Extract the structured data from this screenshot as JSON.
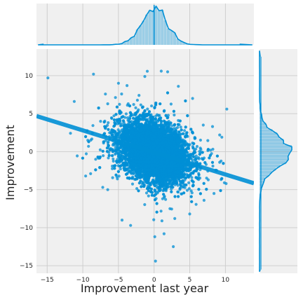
{
  "colors": {
    "accent": "#008fd5",
    "panel_bg": "#f0f0f0",
    "grid": "#cbcbcb",
    "text": "#222222"
  },
  "chart_data": {
    "type": "scatter",
    "subtype": "jointplot",
    "title": "",
    "xlabel": "Improvement last year",
    "ylabel": "Improvement",
    "xlim": [
      -16.5,
      14
    ],
    "ylim": [
      -16,
      13.5
    ],
    "x_ticks": [
      -15,
      -10,
      -5,
      0,
      5,
      10
    ],
    "y_ticks": [
      -15,
      -10,
      -5,
      0,
      5,
      10
    ],
    "grid": true,
    "regression_line": {
      "slope": -0.29,
      "intercept": -0.1
    },
    "distribution": {
      "n_points": 9000,
      "x_center": 0,
      "y_center": 0,
      "x_spread": 2.3,
      "y_spread": 1.9,
      "correlation": -0.3
    },
    "outliers": [
      {
        "x": -14.9,
        "y": 9.7
      },
      {
        "x": -11.2,
        "y": 6.6
      },
      {
        "x": -8.5,
        "y": 10.2
      },
      {
        "x": -9.3,
        "y": 1.5
      },
      {
        "x": -9.2,
        "y": 0.7
      },
      {
        "x": -8.2,
        "y": -1.0
      },
      {
        "x": -7.2,
        "y": -4.7
      },
      {
        "x": -9.6,
        "y": -3.2
      },
      {
        "x": -6.5,
        "y": -5.0
      },
      {
        "x": -5.0,
        "y": 9.0
      },
      {
        "x": -3.8,
        "y": 8.7
      },
      {
        "x": -1.3,
        "y": 9.9
      },
      {
        "x": 1.0,
        "y": 10.6
      },
      {
        "x": 1.9,
        "y": 10.5
      },
      {
        "x": 3.4,
        "y": 8.6
      },
      {
        "x": 0.1,
        "y": -11.2
      },
      {
        "x": 1.4,
        "y": -10.8
      },
      {
        "x": 2.7,
        "y": -12.5
      },
      {
        "x": 0.2,
        "y": -14.4
      },
      {
        "x": 2.9,
        "y": -8.8
      },
      {
        "x": 1.1,
        "y": -9.1
      },
      {
        "x": 6.9,
        "y": 3.5
      },
      {
        "x": 8.2,
        "y": 3.3
      },
      {
        "x": 9.2,
        "y": 2.2
      },
      {
        "x": 9.5,
        "y": 1.9
      },
      {
        "x": 9.2,
        "y": -1.4
      },
      {
        "x": 10.1,
        "y": -4.2
      },
      {
        "x": 7.0,
        "y": -6.4
      },
      {
        "x": 10.2,
        "y": 5.6
      },
      {
        "x": 8.4,
        "y": -5.5
      },
      {
        "x": -4.5,
        "y": -9.0
      },
      {
        "x": -3.3,
        "y": -9.7
      },
      {
        "x": 5.0,
        "y": -8.2
      },
      {
        "x": -6.5,
        "y": 6.3
      },
      {
        "x": -8.9,
        "y": -2.9
      },
      {
        "x": 5.4,
        "y": 7.0
      }
    ]
  }
}
